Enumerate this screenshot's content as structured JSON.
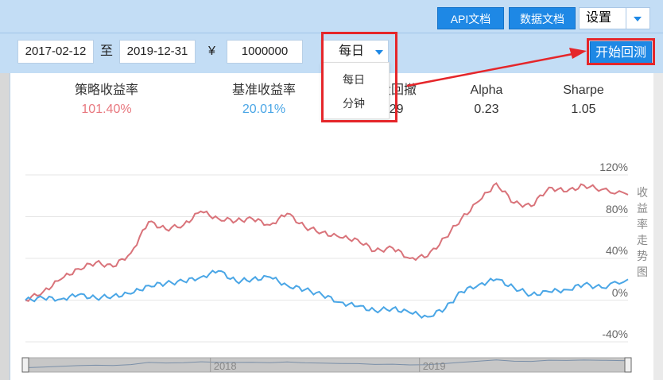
{
  "header": {
    "api_doc_label": "API文档",
    "data_doc_label": "数据文档",
    "settings_label": "设置"
  },
  "toolbar": {
    "start_date": "2017-02-12",
    "to_label": "至",
    "end_date": "2019-12-31",
    "currency_symbol": "¥",
    "capital": "1000000",
    "frequency_selected": "每日",
    "run_backtest_label": "开始回测"
  },
  "frequency_options": [
    "每日",
    "分钟"
  ],
  "metrics": [
    {
      "label": "策略收益率",
      "value": "101.40%",
      "color": "#e8787f"
    },
    {
      "label": "基准收益率",
      "value": "20.01%",
      "color": "#4aa6e6"
    },
    {
      "label": "最大回撤",
      "value": "0.29",
      "color": "#333333"
    },
    {
      "label": "Alpha",
      "value": "0.23",
      "color": "#333333"
    },
    {
      "label": "Sharpe",
      "value": "1.05",
      "color": "#333333"
    }
  ],
  "chart_data": {
    "type": "line",
    "title": "收益率走势图",
    "y_tick_labels": [
      "120%",
      "80%",
      "40%",
      "0%",
      "-40%"
    ],
    "y_ticks": [
      120,
      80,
      40,
      0,
      -40
    ],
    "ylim": [
      -40,
      120
    ],
    "navigator_labels": [
      "2018",
      "2019"
    ],
    "series": [
      {
        "color": "#d9737a",
        "x": [
          "2017-02-12",
          "2017-03-15",
          "2017-04-15",
          "2017-05-15",
          "2017-06-15",
          "2017-07-15",
          "2017-08-15",
          "2017-09-15",
          "2017-10-15",
          "2017-11-15",
          "2017-12-15",
          "2018-01-15",
          "2018-02-15",
          "2018-03-15",
          "2018-04-15",
          "2018-05-15",
          "2018-06-15",
          "2018-07-15",
          "2018-08-15",
          "2018-09-15",
          "2018-10-15",
          "2018-11-15",
          "2018-12-15",
          "2019-01-15",
          "2019-02-15",
          "2019-03-15",
          "2019-04-15",
          "2019-05-15",
          "2019-06-15",
          "2019-07-15",
          "2019-08-15",
          "2019-09-15",
          "2019-10-15",
          "2019-11-15",
          "2019-12-31"
        ],
        "y": [
          0,
          8,
          20,
          30,
          36,
          32,
          45,
          75,
          68,
          72,
          85,
          78,
          76,
          78,
          72,
          83,
          70,
          65,
          60,
          58,
          47,
          50,
          40,
          42,
          60,
          78,
          95,
          112,
          93,
          90,
          108,
          104,
          110,
          106,
          101
        ]
      },
      {
        "color": "#4aa6e6",
        "x": [
          "2017-02-12",
          "2017-03-15",
          "2017-04-15",
          "2017-05-15",
          "2017-06-15",
          "2017-07-15",
          "2017-08-15",
          "2017-09-15",
          "2017-10-15",
          "2017-11-15",
          "2017-12-15",
          "2018-01-15",
          "2018-02-15",
          "2018-03-15",
          "2018-04-15",
          "2018-05-15",
          "2018-06-15",
          "2018-07-15",
          "2018-08-15",
          "2018-09-15",
          "2018-10-15",
          "2018-11-15",
          "2018-12-15",
          "2019-01-15",
          "2019-02-15",
          "2019-03-15",
          "2019-04-15",
          "2019-05-15",
          "2019-06-15",
          "2019-07-15",
          "2019-08-15",
          "2019-09-15",
          "2019-10-15",
          "2019-11-15",
          "2019-12-31"
        ],
        "y": [
          0,
          2,
          1,
          5,
          2,
          4,
          6,
          14,
          16,
          18,
          22,
          28,
          18,
          20,
          22,
          14,
          10,
          5,
          -2,
          -6,
          -10,
          -8,
          -12,
          -16,
          -8,
          8,
          15,
          20,
          12,
          5,
          8,
          10,
          15,
          12,
          20
        ]
      }
    ]
  }
}
